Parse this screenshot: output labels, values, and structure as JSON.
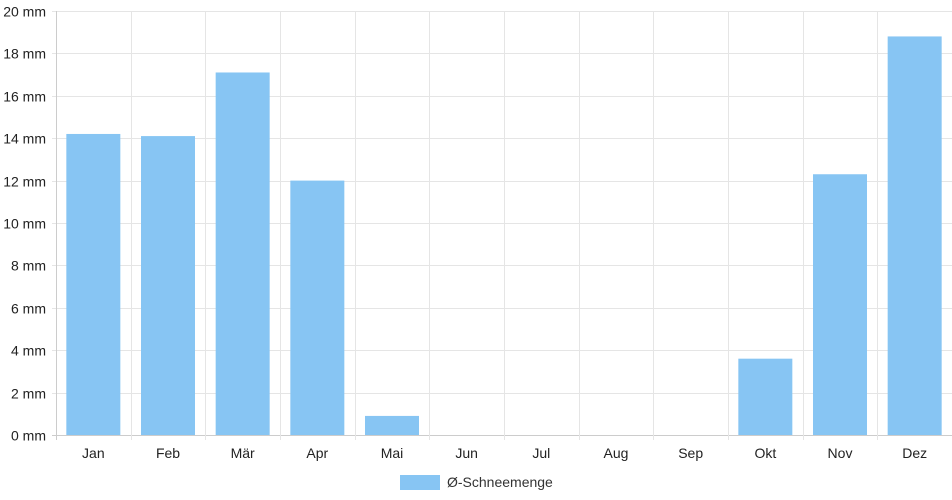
{
  "chart_data": {
    "type": "bar",
    "categories": [
      "Jan",
      "Feb",
      "Mär",
      "Apr",
      "Mai",
      "Jun",
      "Jul",
      "Aug",
      "Sep",
      "Okt",
      "Nov",
      "Dez"
    ],
    "series": [
      {
        "name": "Ø-Schneemenge",
        "values": [
          14.2,
          14.1,
          17.1,
          12.0,
          0.9,
          0,
          0,
          0,
          0,
          3.6,
          12.3,
          18.8
        ],
        "color": "#87c5f3"
      }
    ],
    "yticks": [
      "0 mm",
      "2 mm",
      "4 mm",
      "6 mm",
      "8 mm",
      "10 mm",
      "12 mm",
      "14 mm",
      "16 mm",
      "18 mm",
      "20 mm"
    ],
    "ylim": [
      0,
      20
    ],
    "grid": true,
    "legend_position": "bottom-center",
    "grid_color": "#e5e5e5",
    "axis_color": "#cccccc"
  }
}
